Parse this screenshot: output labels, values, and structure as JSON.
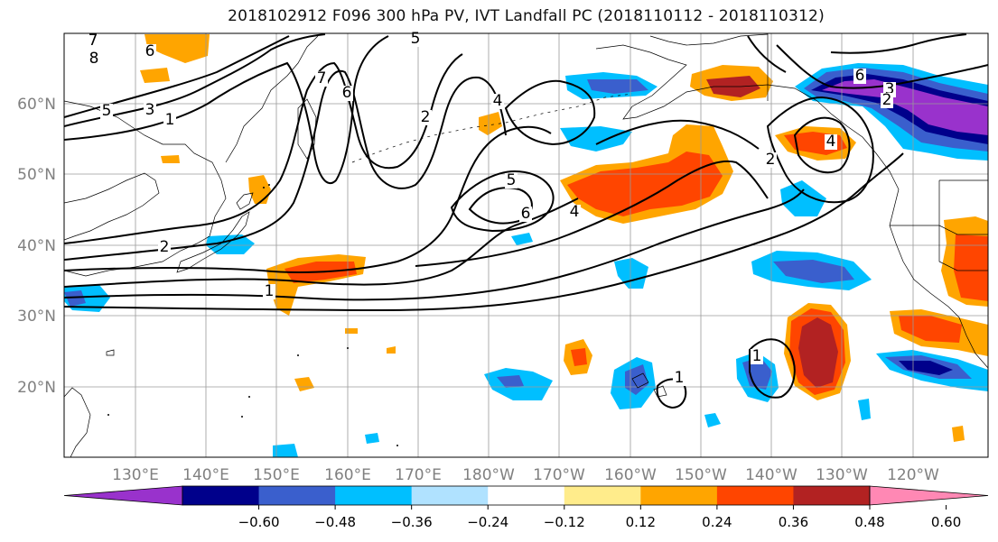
{
  "title": "2018102912 F096 300 hPa PV, IVT Landfall PC (2018110112 - 2018110312)",
  "map": {
    "lon_labels": [
      "130°E",
      "140°E",
      "150°E",
      "160°E",
      "170°E",
      "180°W",
      "170°W",
      "160°W",
      "150°W",
      "140°W",
      "130°W",
      "120°W"
    ],
    "lat_labels": [
      "60°N",
      "50°N",
      "40°N",
      "30°N",
      "20°N"
    ],
    "tick_label_color": "#808080",
    "contour_labels": [
      "7",
      "8",
      "6",
      "5",
      "3",
      "1",
      "5",
      "7",
      "6",
      "2",
      "4",
      "5",
      "6",
      "4",
      "2",
      "4",
      "3",
      "6",
      "2",
      "2",
      "1",
      "1",
      "1"
    ]
  },
  "colorbar": {
    "tick_labels": [
      "−0.60",
      "−0.48",
      "−0.36",
      "−0.24",
      "−0.12",
      "0.12",
      "0.24",
      "0.36",
      "0.48",
      "0.60"
    ],
    "colors": [
      "#9932cc",
      "#00008b",
      "#3a5fcd",
      "#00bfff",
      "#b0e2ff",
      "#ffffff",
      "#ffec8b",
      "#ffa500",
      "#ff4500",
      "#b22222",
      "#ff88b4"
    ]
  }
}
